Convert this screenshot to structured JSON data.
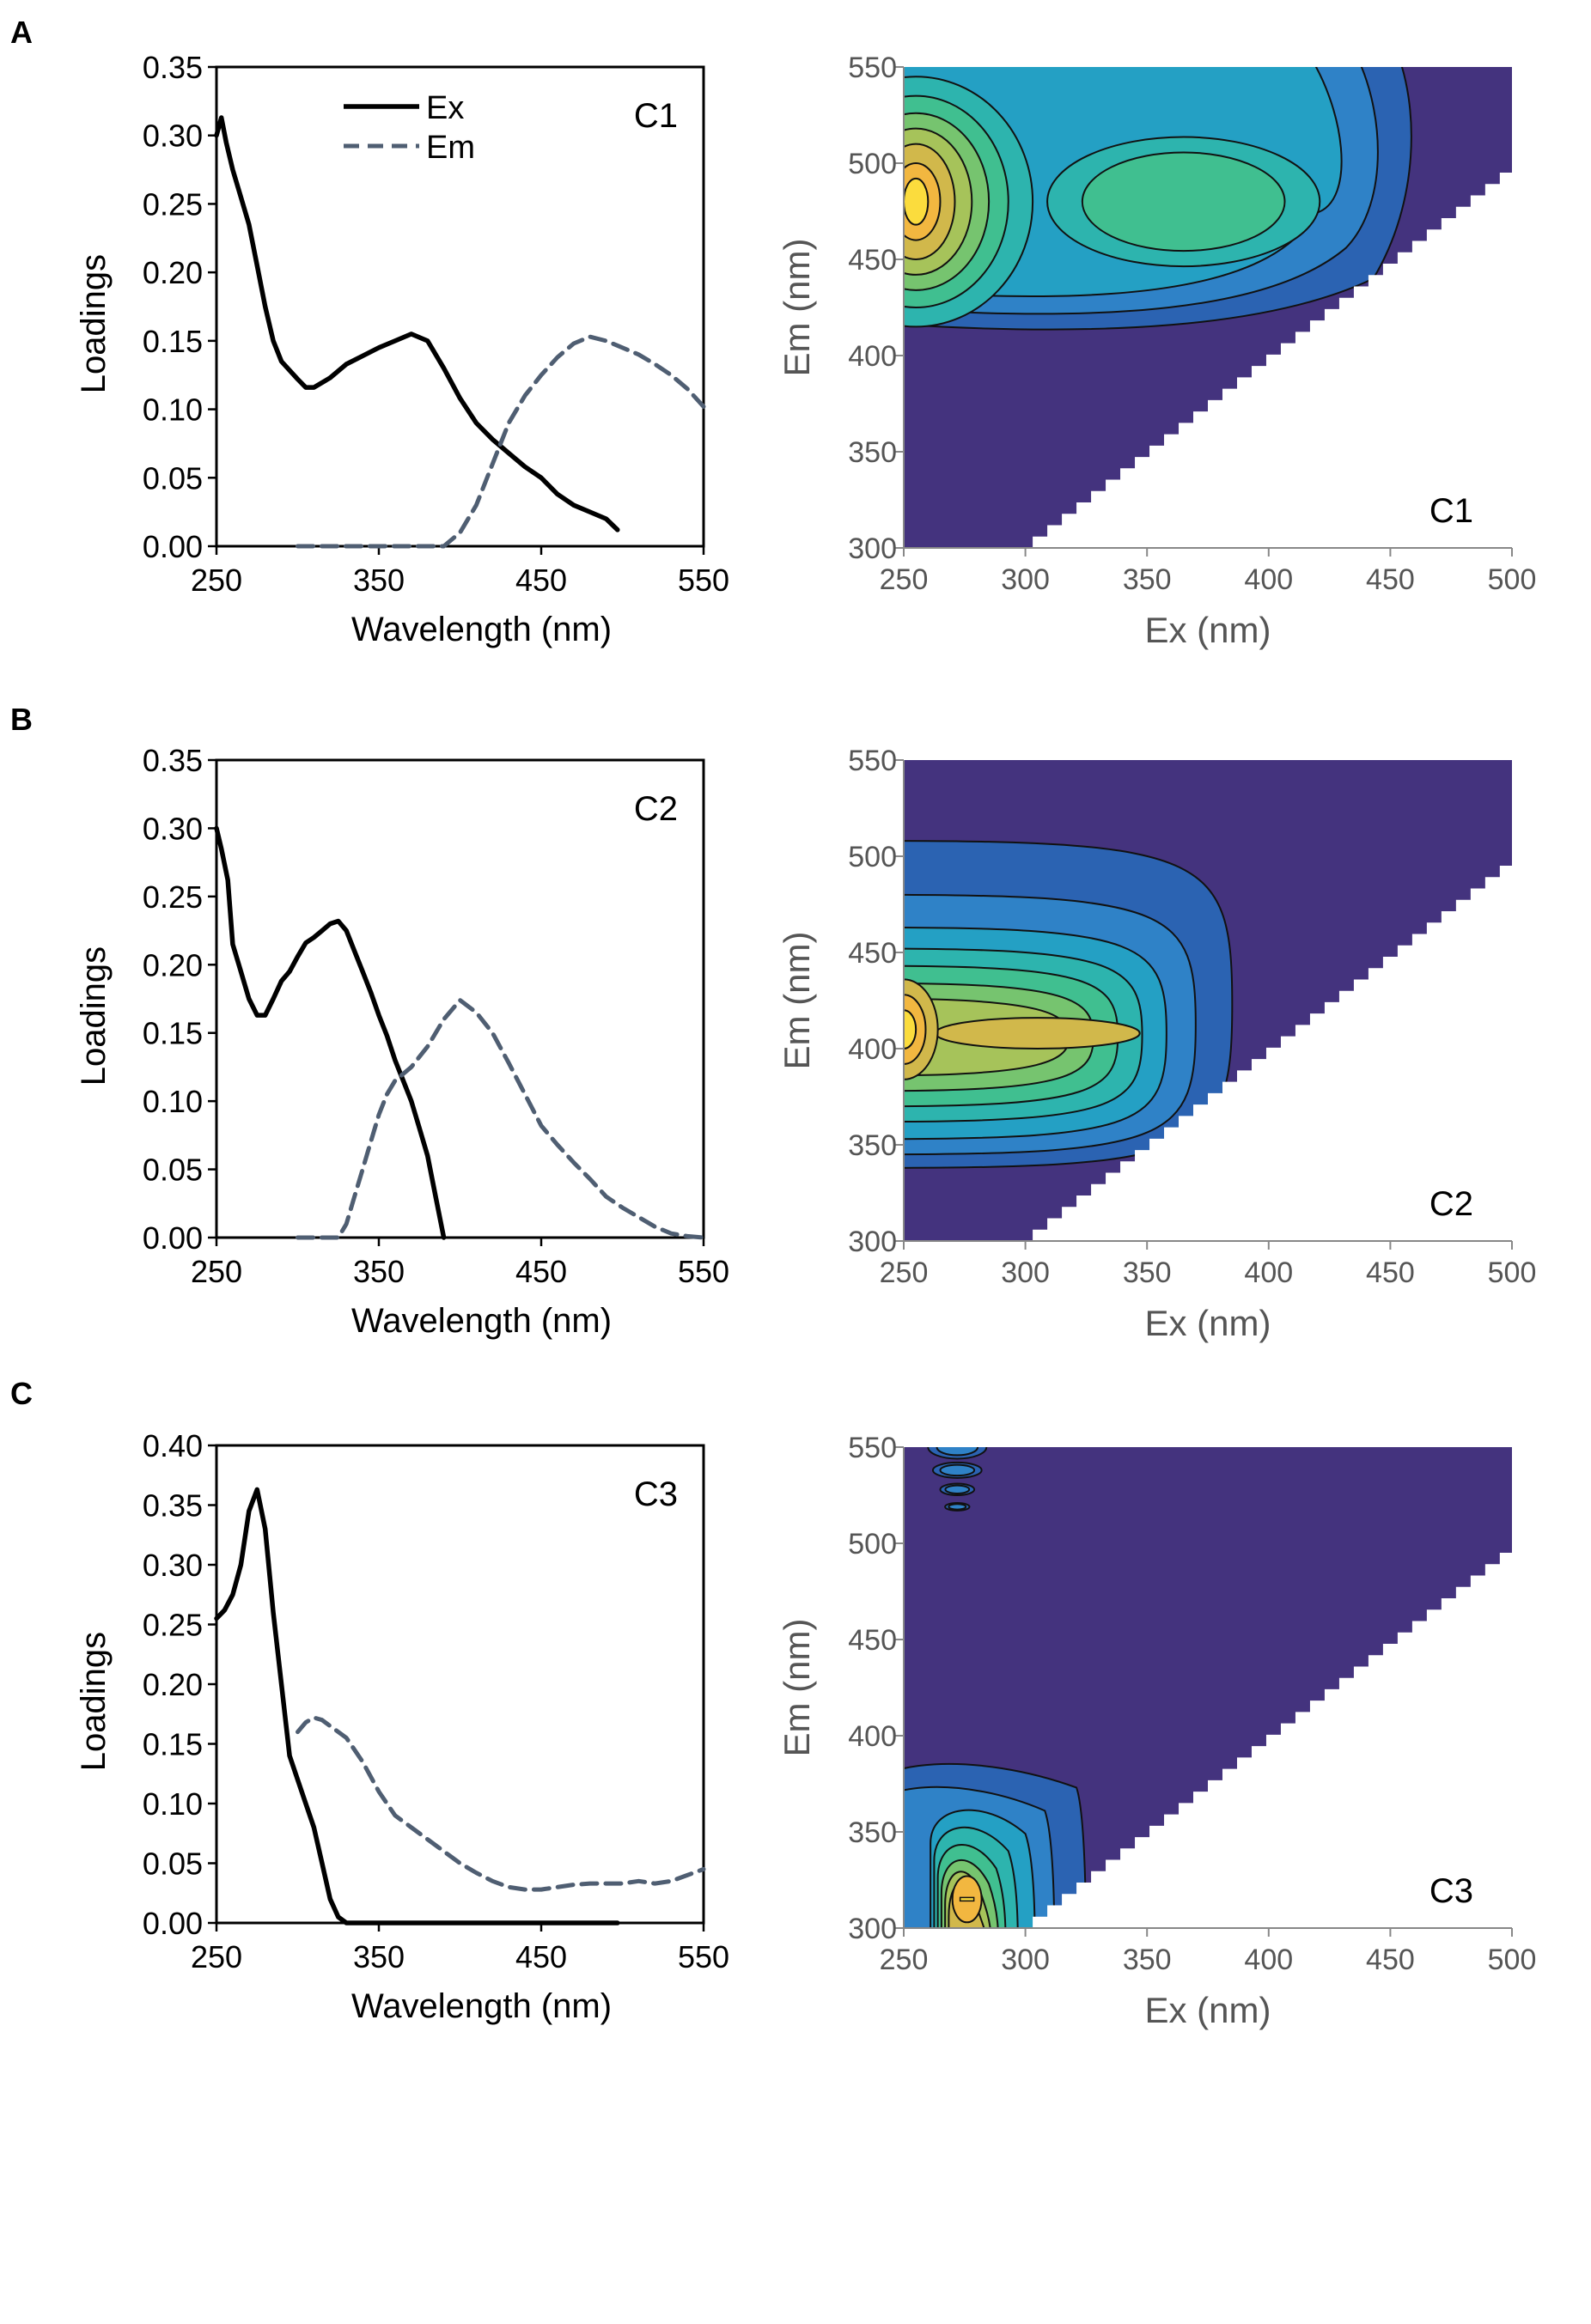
{
  "panels": [
    {
      "letter": "A",
      "loadings": {
        "component": "C1",
        "xlabel": "Wavelength (nm)",
        "ylabel": "Loadings",
        "xlim": [
          250,
          550
        ],
        "ylim": [
          0,
          0.35
        ],
        "xticks": [
          "250",
          "350",
          "450",
          "550"
        ],
        "yticks": [
          "0.00",
          "0.05",
          "0.10",
          "0.15",
          "0.20",
          "0.25",
          "0.30",
          "0.35"
        ],
        "legend": [
          "Ex",
          "Em"
        ]
      },
      "eem": {
        "component": "C1",
        "xlabel": "Ex (nm)",
        "ylabel": "Em (nm)",
        "xticks": [
          "250",
          "300",
          "350",
          "400",
          "450",
          "500"
        ],
        "yticks": [
          "300",
          "350",
          "400",
          "450",
          "500",
          "550"
        ]
      }
    },
    {
      "letter": "B",
      "loadings": {
        "component": "C2",
        "xlabel": "Wavelength (nm)",
        "ylabel": "Loadings",
        "xlim": [
          250,
          550
        ],
        "ylim": [
          0,
          0.35
        ],
        "xticks": [
          "250",
          "350",
          "450",
          "550"
        ],
        "yticks": [
          "0.00",
          "0.05",
          "0.10",
          "0.15",
          "0.20",
          "0.25",
          "0.30",
          "0.35"
        ],
        "legend": []
      },
      "eem": {
        "component": "C2",
        "xlabel": "Ex (nm)",
        "ylabel": "Em (nm)",
        "xticks": [
          "250",
          "300",
          "350",
          "400",
          "450",
          "500"
        ],
        "yticks": [
          "300",
          "350",
          "400",
          "450",
          "500",
          "550"
        ]
      }
    },
    {
      "letter": "C",
      "loadings": {
        "component": "C3",
        "xlabel": "Wavelength (nm)",
        "ylabel": "Loadings",
        "xlim": [
          250,
          550
        ],
        "ylim": [
          0,
          0.4
        ],
        "xticks": [
          "250",
          "350",
          "450",
          "550"
        ],
        "yticks": [
          "0.00",
          "0.05",
          "0.10",
          "0.15",
          "0.20",
          "0.25",
          "0.30",
          "0.35",
          "0.40"
        ],
        "legend": []
      },
      "eem": {
        "component": "C3",
        "xlabel": "Ex (nm)",
        "ylabel": "Em (nm)",
        "xticks": [
          "250",
          "300",
          "350",
          "400",
          "450",
          "500"
        ],
        "yticks": [
          "300",
          "350",
          "400",
          "450",
          "500",
          "550"
        ]
      }
    }
  ],
  "chart_data": [
    {
      "type": "line",
      "panel": "A",
      "title": "C1",
      "xlabel": "Wavelength (nm)",
      "ylabel": "Loadings",
      "xlim": [
        250,
        550
      ],
      "ylim": [
        0,
        0.35
      ],
      "series": [
        {
          "name": "Ex",
          "x": [
            250,
            253,
            256,
            260,
            265,
            270,
            275,
            280,
            285,
            290,
            300,
            305,
            310,
            320,
            330,
            340,
            350,
            360,
            370,
            380,
            390,
            400,
            410,
            420,
            430,
            440,
            450,
            460,
            470,
            480,
            490,
            497
          ],
          "y": [
            0.3,
            0.313,
            0.295,
            0.275,
            0.255,
            0.235,
            0.205,
            0.175,
            0.15,
            0.135,
            0.122,
            0.116,
            0.116,
            0.123,
            0.133,
            0.139,
            0.145,
            0.15,
            0.155,
            0.15,
            0.13,
            0.108,
            0.09,
            0.078,
            0.068,
            0.058,
            0.05,
            0.038,
            0.03,
            0.025,
            0.02,
            0.012
          ]
        },
        {
          "name": "Em",
          "x": [
            300,
            320,
            340,
            360,
            380,
            390,
            400,
            410,
            420,
            430,
            440,
            450,
            460,
            470,
            480,
            490,
            500,
            510,
            520,
            530,
            540,
            550
          ],
          "y": [
            0.0,
            0.0,
            0.0,
            0.0,
            0.0,
            0.0,
            0.01,
            0.03,
            0.06,
            0.09,
            0.11,
            0.125,
            0.138,
            0.148,
            0.153,
            0.15,
            0.145,
            0.14,
            0.133,
            0.125,
            0.115,
            0.102
          ]
        }
      ]
    },
    {
      "type": "heatmap",
      "panel": "A",
      "title": "C1",
      "xlabel": "Ex (nm)",
      "ylabel": "Em (nm)",
      "xlim": [
        250,
        500
      ],
      "ylim": [
        300,
        550
      ],
      "peaks": [
        {
          "ex": 255,
          "em": 480,
          "level": 1.0
        },
        {
          "ex": 365,
          "em": 480,
          "level": 0.55
        }
      ]
    },
    {
      "type": "line",
      "panel": "B",
      "title": "C2",
      "xlabel": "Wavelength (nm)",
      "ylabel": "Loadings",
      "xlim": [
        250,
        550
      ],
      "ylim": [
        0,
        0.35
      ],
      "series": [
        {
          "name": "Ex",
          "x": [
            250,
            253,
            257,
            260,
            265,
            270,
            275,
            280,
            285,
            290,
            295,
            300,
            305,
            310,
            315,
            320,
            325,
            330,
            335,
            340,
            345,
            350,
            355,
            360,
            365,
            370,
            375,
            380,
            385,
            390
          ],
          "y": [
            0.3,
            0.285,
            0.262,
            0.215,
            0.195,
            0.175,
            0.163,
            0.163,
            0.175,
            0.188,
            0.195,
            0.206,
            0.216,
            0.22,
            0.225,
            0.23,
            0.232,
            0.225,
            0.21,
            0.195,
            0.18,
            0.163,
            0.148,
            0.13,
            0.115,
            0.1,
            0.08,
            0.06,
            0.03,
            0.0
          ]
        },
        {
          "name": "Em",
          "x": [
            300,
            310,
            320,
            325,
            330,
            335,
            340,
            345,
            350,
            355,
            360,
            370,
            380,
            390,
            400,
            410,
            420,
            430,
            440,
            450,
            460,
            470,
            480,
            490,
            500,
            510,
            520,
            530,
            540,
            550
          ],
          "y": [
            0.0,
            0.0,
            0.0,
            0.0,
            0.01,
            0.03,
            0.05,
            0.07,
            0.09,
            0.105,
            0.115,
            0.125,
            0.14,
            0.16,
            0.174,
            0.165,
            0.15,
            0.128,
            0.105,
            0.082,
            0.068,
            0.055,
            0.043,
            0.03,
            0.022,
            0.015,
            0.008,
            0.003,
            0.001,
            0.0
          ]
        }
      ]
    },
    {
      "type": "heatmap",
      "panel": "B",
      "title": "C2",
      "xlabel": "Ex (nm)",
      "ylabel": "Em (nm)",
      "xlim": [
        250,
        500
      ],
      "ylim": [
        300,
        550
      ],
      "peaks": [
        {
          "ex": 252,
          "em": 410,
          "level": 1.0
        },
        {
          "ex": 305,
          "em": 408,
          "level": 0.7
        }
      ]
    },
    {
      "type": "line",
      "panel": "C",
      "title": "C3",
      "xlabel": "Wavelength (nm)",
      "ylabel": "Loadings",
      "xlim": [
        250,
        550
      ],
      "ylim": [
        0,
        0.4
      ],
      "series": [
        {
          "name": "Ex",
          "x": [
            250,
            255,
            260,
            265,
            270,
            275,
            280,
            285,
            290,
            295,
            300,
            305,
            310,
            315,
            320,
            325,
            330,
            335,
            340,
            360,
            400,
            450,
            497
          ],
          "y": [
            0.255,
            0.262,
            0.275,
            0.3,
            0.345,
            0.363,
            0.33,
            0.26,
            0.2,
            0.14,
            0.12,
            0.1,
            0.08,
            0.05,
            0.02,
            0.005,
            0.0,
            0.0,
            0.0,
            0.0,
            0.0,
            0.0,
            0.0
          ]
        },
        {
          "name": "Em",
          "x": [
            300,
            305,
            310,
            315,
            320,
            330,
            340,
            350,
            360,
            370,
            380,
            390,
            400,
            410,
            420,
            430,
            440,
            450,
            460,
            470,
            480,
            490,
            500,
            510,
            520,
            530,
            540,
            550
          ],
          "y": [
            0.16,
            0.168,
            0.172,
            0.17,
            0.165,
            0.155,
            0.135,
            0.11,
            0.09,
            0.08,
            0.07,
            0.06,
            0.05,
            0.042,
            0.035,
            0.03,
            0.028,
            0.028,
            0.03,
            0.032,
            0.033,
            0.033,
            0.033,
            0.035,
            0.033,
            0.035,
            0.04,
            0.045
          ]
        }
      ]
    },
    {
      "type": "heatmap",
      "panel": "C",
      "title": "C3",
      "xlabel": "Ex (nm)",
      "ylabel": "Em (nm)",
      "xlim": [
        250,
        500
      ],
      "ylim": [
        300,
        550
      ],
      "peaks": [
        {
          "ex": 276,
          "em": 315,
          "level": 0.85
        },
        {
          "ex": 272,
          "em": 545,
          "level": 0.35
        }
      ]
    }
  ]
}
